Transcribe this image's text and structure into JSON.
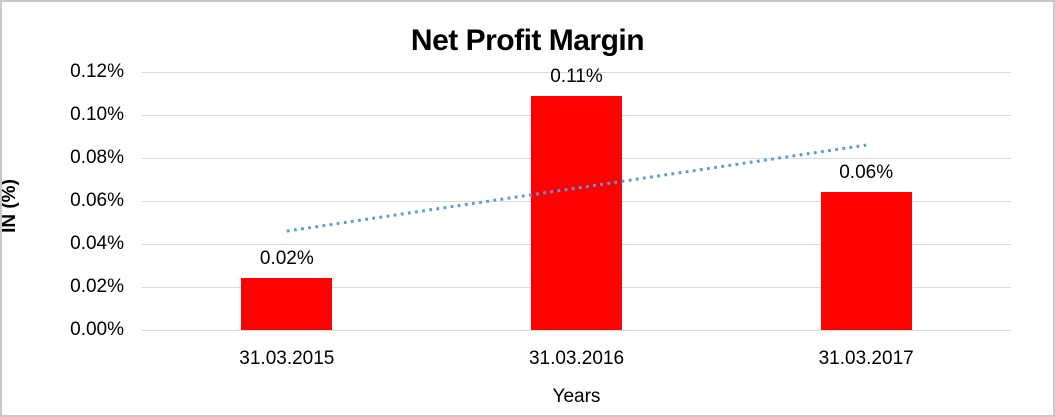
{
  "frame": {
    "background_color": "#ffffff",
    "border_color": "#c9c9c9"
  },
  "chart_data": {
    "type": "bar",
    "title": "Net Profit Margin",
    "xlabel": "Years",
    "ylabel": "IN (%)",
    "categories": [
      "31.03.2015",
      "31.03.2016",
      "31.03.2017"
    ],
    "series": [
      {
        "name": "Net Profit Margin",
        "color": "#ff0000",
        "values": [
          0.024,
          0.109,
          0.064
        ],
        "data_labels": [
          "0.02%",
          "0.11%",
          "0.06%"
        ]
      }
    ],
    "ylim": [
      0,
      0.12
    ],
    "y_tick_step": 0.02,
    "y_tick_labels_top_to_bottom": [
      "0.12%",
      "0.10%",
      "0.08%",
      "0.06%",
      "0.04%",
      "0.02%",
      "0.00%"
    ],
    "grid": true,
    "gridline_color": "#d9d9d9",
    "legend": "none",
    "trendline": {
      "type": "linear",
      "line_style": "dotted",
      "color": "#5b9bd5",
      "start_value": 0.046,
      "end_value": 0.086
    }
  }
}
